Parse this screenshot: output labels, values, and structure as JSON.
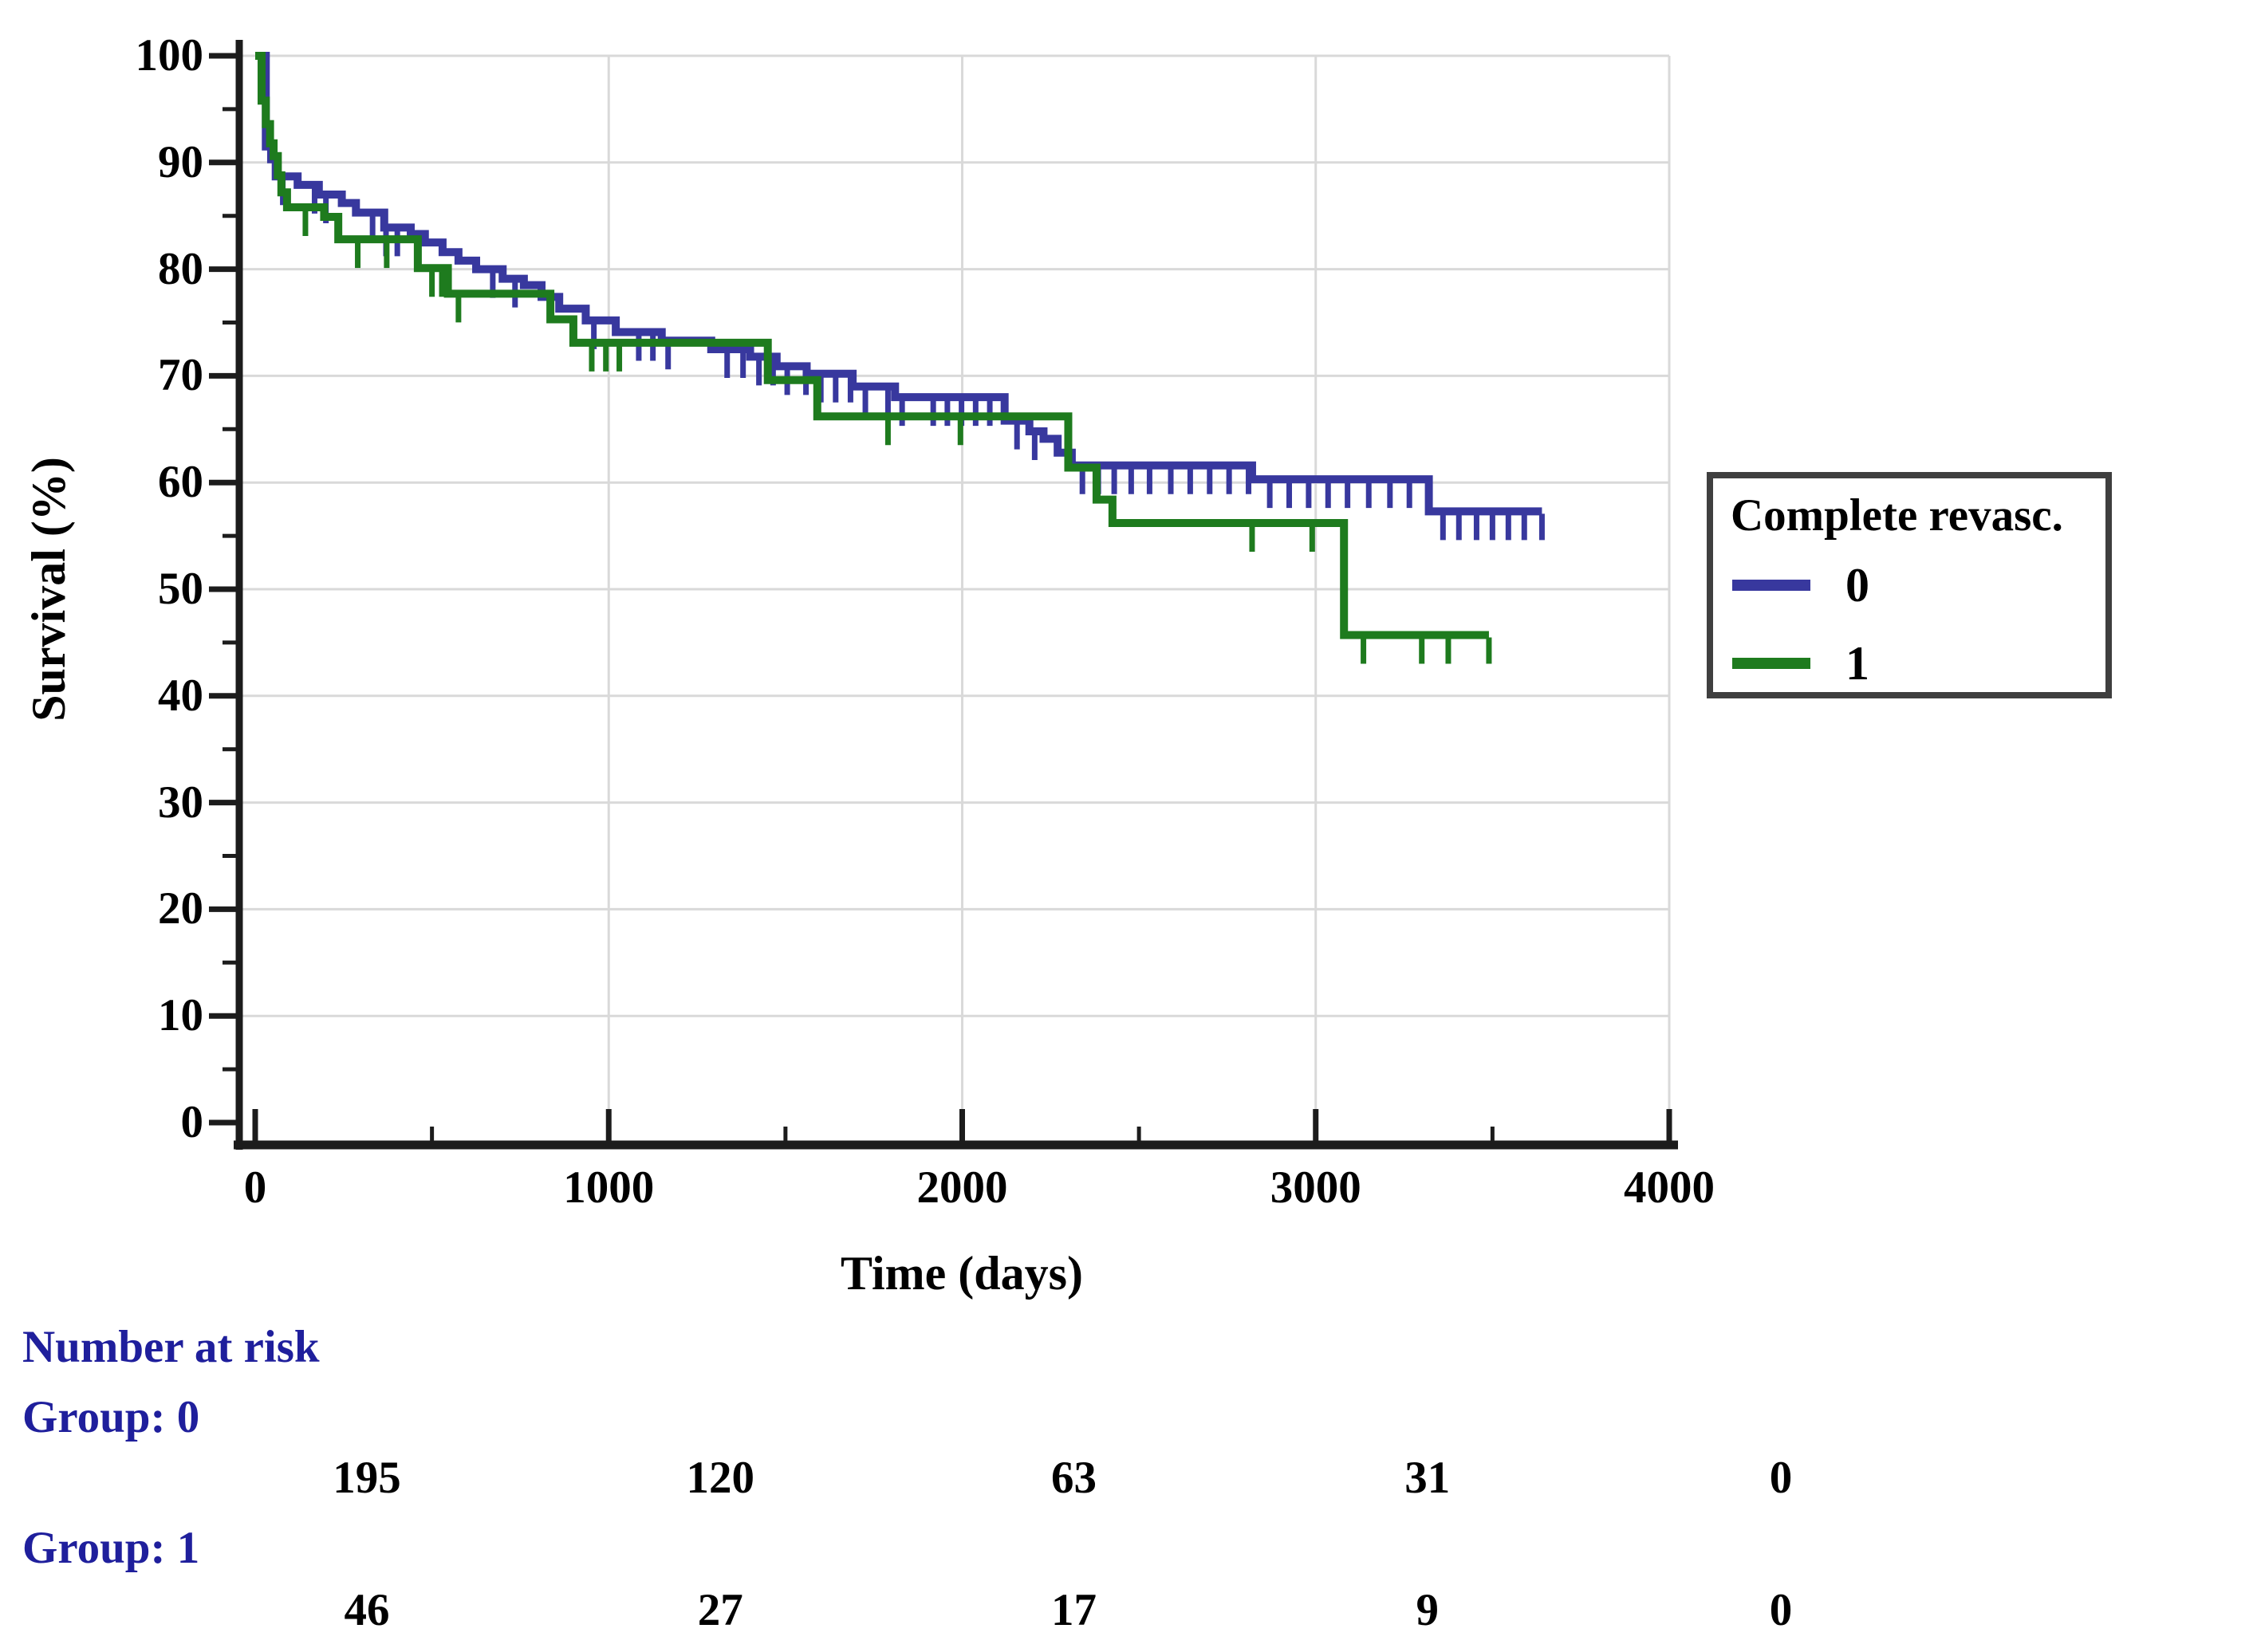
{
  "chart_data": {
    "type": "line",
    "subtype": "kaplan-meier-step",
    "title": "",
    "xlabel": "Time (days)",
    "ylabel": "Survival (%)",
    "xlim": [
      0,
      4000
    ],
    "ylim": [
      0,
      100
    ],
    "xticks_major": [
      0,
      1000,
      2000,
      3000,
      4000
    ],
    "xticks_minor": [
      500,
      1500,
      2500,
      3500
    ],
    "yticks_major": [
      0,
      10,
      20,
      30,
      40,
      50,
      60,
      70,
      80,
      90,
      100
    ],
    "yticks_minor": [
      5,
      15,
      25,
      35,
      45,
      55,
      65,
      75,
      85,
      95
    ],
    "grid": {
      "horizontal": [
        10,
        20,
        30,
        40,
        50,
        60,
        70,
        80,
        90,
        100
      ],
      "vertical": [
        1000,
        2000,
        3000,
        4000
      ]
    },
    "colors": {
      "axis": "#1c1c1c",
      "grid": "#d9d9d9",
      "group0": "#38389e",
      "group1": "#1e7b1e"
    },
    "legend": {
      "title": "Complete revasc.",
      "position": "right",
      "entries": [
        {
          "label": "0",
          "color": "#38389e"
        },
        {
          "label": "1",
          "color": "#1e7b1e"
        }
      ]
    },
    "series": [
      {
        "name": "0",
        "color": "#38389e",
        "steps": [
          [
            0,
            100
          ],
          [
            30,
            91.5
          ],
          [
            45,
            90.3
          ],
          [
            58,
            88.7
          ],
          [
            120,
            87.9
          ],
          [
            180,
            87.0
          ],
          [
            245,
            86.2
          ],
          [
            285,
            85.3
          ],
          [
            365,
            83.9
          ],
          [
            440,
            83.3
          ],
          [
            480,
            82.5
          ],
          [
            530,
            81.6
          ],
          [
            575,
            80.8
          ],
          [
            625,
            80.0
          ],
          [
            700,
            79.1
          ],
          [
            760,
            78.5
          ],
          [
            810,
            77.4
          ],
          [
            860,
            76.3
          ],
          [
            935,
            75.2
          ],
          [
            1020,
            74.1
          ],
          [
            1150,
            73.3
          ],
          [
            1290,
            72.5
          ],
          [
            1400,
            71.8
          ],
          [
            1475,
            70.9
          ],
          [
            1560,
            70.2
          ],
          [
            1690,
            69.0
          ],
          [
            1810,
            68.0
          ],
          [
            2120,
            65.8
          ],
          [
            2190,
            64.8
          ],
          [
            2230,
            64.1
          ],
          [
            2270,
            62.8
          ],
          [
            2310,
            61.6
          ],
          [
            2820,
            60.3
          ],
          [
            3320,
            57.3
          ]
        ],
        "end_time": 3640,
        "censor_times": [
          78,
          168,
          200,
          332,
          370,
          402,
          672,
          735,
          958,
          1085,
          1125,
          1168,
          1335,
          1380,
          1425,
          1465,
          1505,
          1558,
          1600,
          1642,
          1684,
          1726,
          1790,
          1830,
          1918,
          1958,
          1998,
          2038,
          2078,
          2155,
          2205,
          2340,
          2385,
          2430,
          2478,
          2530,
          2590,
          2645,
          2700,
          2755,
          2810,
          2870,
          2925,
          2980,
          3035,
          3090,
          3150,
          3210,
          3265,
          3360,
          3405,
          3455,
          3500,
          3545,
          3590,
          3640
        ]
      },
      {
        "name": "1",
        "color": "#1e7b1e",
        "steps": [
          [
            0,
            100
          ],
          [
            18,
            95.8
          ],
          [
            30,
            93.6
          ],
          [
            42,
            91.8
          ],
          [
            52,
            90.6
          ],
          [
            64,
            88.8
          ],
          [
            74,
            87.2
          ],
          [
            90,
            85.8
          ],
          [
            195,
            84.9
          ],
          [
            235,
            82.8
          ],
          [
            460,
            80.1
          ],
          [
            545,
            77.7
          ],
          [
            835,
            75.3
          ],
          [
            900,
            73.1
          ],
          [
            1450,
            69.6
          ],
          [
            1590,
            66.2
          ],
          [
            2300,
            61.4
          ],
          [
            2380,
            58.4
          ],
          [
            2425,
            56.2
          ],
          [
            3080,
            45.7
          ]
        ],
        "end_time": 3490,
        "censor_times": [
          142,
          290,
          372,
          500,
          528,
          575,
          952,
          992,
          1030,
          1790,
          1995,
          2820,
          2990,
          3135,
          3300,
          3375,
          3490
        ]
      }
    ]
  },
  "risk_table": {
    "title": "Number at risk",
    "time_points": [
      0,
      1000,
      2000,
      3000,
      4000
    ],
    "groups": [
      {
        "label": "Group: 0",
        "counts": [
          "195",
          "120",
          "63",
          "31",
          "0"
        ]
      },
      {
        "label": "Group: 1",
        "counts": [
          "46",
          "27",
          "17",
          "9",
          "0"
        ]
      }
    ]
  }
}
